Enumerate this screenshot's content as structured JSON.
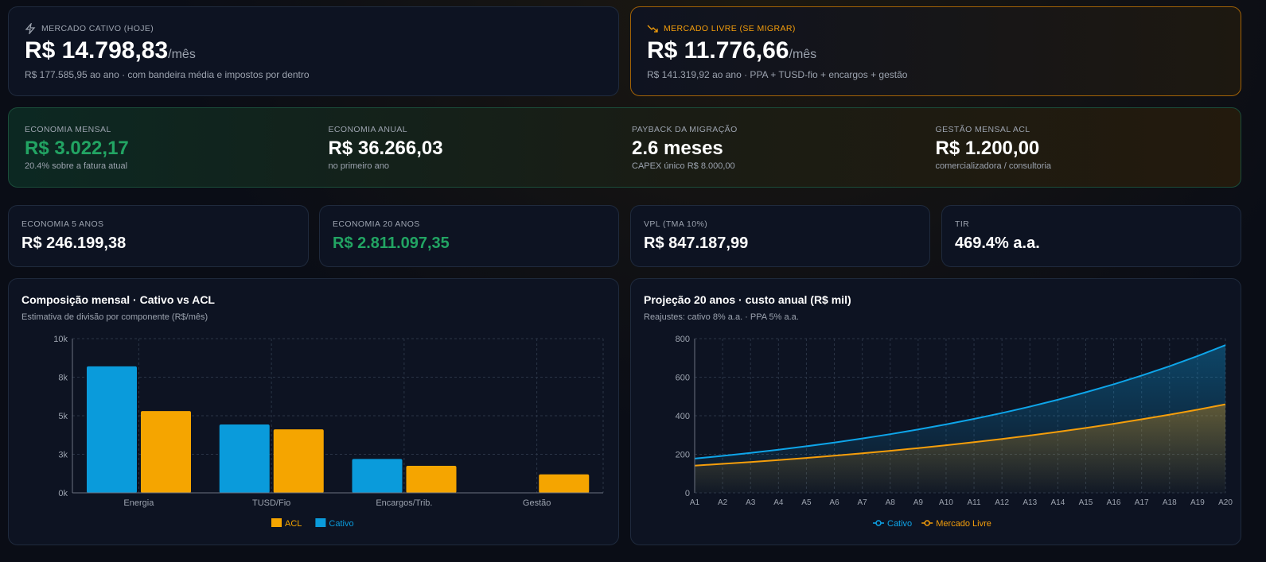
{
  "cards": [
    {
      "label": "MERCADO CATIVO (HOJE)",
      "value": "R$ 14.798,83",
      "unit": "/mês",
      "note": "R$ 177.585,95 ao ano · com bandeira média e impostos por dentro"
    },
    {
      "label": "MERCADO LIVRE (SE MIGRAR)",
      "value": "R$ 11.776,66",
      "unit": "/mês",
      "note": "R$ 141.319,92 ao ano · PPA + TUSD-fio + encargos + gestão"
    }
  ],
  "savings": [
    {
      "label": "ECONOMIA MENSAL",
      "value": "R$ 3.022,17",
      "note": "20.4% sobre a fatura atual"
    },
    {
      "label": "ECONOMIA ANUAL",
      "value": "R$ 36.266,03",
      "note": "no primeiro ano"
    },
    {
      "label": "PAYBACK DA MIGRAÇÃO",
      "value": "2.6 meses",
      "note": "CAPEX único R$ 8.000,00"
    },
    {
      "label": "GESTÃO MENSAL ACL",
      "value": "R$ 1.200,00",
      "note": "comercializadora / consultoria"
    }
  ],
  "metrics": [
    {
      "label": "ECONOMIA 5 ANOS",
      "value": "R$ 246.199,38"
    },
    {
      "label": "ECONOMIA 20 ANOS",
      "value": "R$ 2.811.097,35"
    },
    {
      "label": "VPL (TMA 10%)",
      "value": "R$ 847.187,99"
    },
    {
      "label": "TIR",
      "value": "469.4% a.a."
    }
  ],
  "chart_data": [
    {
      "type": "bar",
      "title": "Composição mensal · Cativo vs ACL",
      "subtitle": "Estimativa de divisão por componente (R$/mês)",
      "categories": [
        "Energia",
        "TUSD/Fio",
        "Encargos/Trib.",
        "Gestão"
      ],
      "series": [
        {
          "name": "Cativo",
          "color": "#0a9bdb",
          "values": [
            8200,
            4430,
            2200,
            0
          ]
        },
        {
          "name": "ACL",
          "color": "#f5a500",
          "values": [
            5300,
            4120,
            1750,
            1200
          ]
        }
      ],
      "ylim": [
        0,
        10000
      ],
      "yticks": [
        {
          "value": 0,
          "label": "0k"
        },
        {
          "value": 2500,
          "label": "3k"
        },
        {
          "value": 5000,
          "label": "5k"
        },
        {
          "value": 7500,
          "label": "8k"
        },
        {
          "value": 10000,
          "label": "10k"
        }
      ],
      "grid": true
    },
    {
      "type": "line",
      "title": "Projeção 20 anos · custo anual (R$ mil)",
      "subtitle": "Reajustes: cativo 8% a.a. · PPA 5% a.a.",
      "categories": [
        "A1",
        "A2",
        "A3",
        "A4",
        "A5",
        "A6",
        "A7",
        "A8",
        "A9",
        "A10",
        "A11",
        "A12",
        "A13",
        "A14",
        "A15",
        "A16",
        "A17",
        "A18",
        "A19",
        "A20"
      ],
      "series": [
        {
          "name": "Cativo",
          "color": "#0ea5e9",
          "values": [
            177.6,
            191.8,
            207.1,
            223.7,
            241.6,
            260.9,
            281.8,
            304.4,
            328.7,
            355.0,
            383.4,
            414.1,
            447.2,
            483.0,
            521.6,
            563.3,
            608.4,
            657.1,
            709.7,
            766.4
          ]
        },
        {
          "name": "Mercado Livre",
          "color": "#f59e0b",
          "values": [
            141.3,
            150.3,
            160.0,
            170.2,
            181.1,
            192.7,
            205.0,
            218.1,
            232.1,
            246.9,
            262.8,
            279.6,
            297.5,
            316.5,
            336.8,
            358.3,
            381.3,
            405.7,
            431.6,
            459.2
          ]
        }
      ],
      "ylim": [
        0,
        800
      ],
      "yticks": [
        0,
        200,
        400,
        600,
        800
      ],
      "grid": true
    }
  ]
}
